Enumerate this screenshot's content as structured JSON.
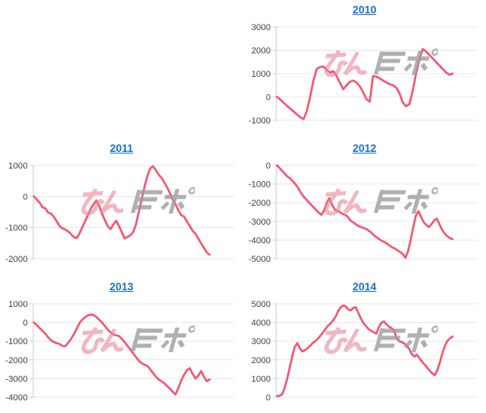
{
  "page": {
    "background": "#ffffff",
    "description": "Grid of five yearly weekly profit/loss line charts"
  },
  "colors": {
    "line": "#f6546e",
    "grid_line": "#e8e8e8",
    "axis_line": "#c9c9c9",
    "tick_text": "#3f3f3f",
    "title_link": "#1b6fc8",
    "watermark_pink": "#ea8c9b",
    "watermark_gray": "#9d9d9d"
  },
  "watermark": {
    "text": "みんレポ",
    "pink_part": "みん",
    "gray_part": "レポ"
  },
  "chart_style": {
    "grid": true,
    "legend": "none",
    "x_axis_labels": "none",
    "marker": "none"
  },
  "chart_data": [
    {
      "type": "line",
      "title": "2010",
      "grid_cell": {
        "row": 0,
        "col": 1
      },
      "ylim": [
        -1000,
        3000
      ],
      "yticks": [
        3000,
        2000,
        1000,
        0,
        -1000
      ],
      "xlabel": "",
      "ylabel": "",
      "values": [
        0,
        -120,
        -250,
        -380,
        -500,
        -620,
        -750,
        -870,
        -950,
        -600,
        0,
        700,
        1200,
        1280,
        1300,
        1150,
        1050,
        1100,
        900,
        600,
        330,
        500,
        650,
        700,
        620,
        450,
        200,
        -100,
        -200,
        900,
        870,
        800,
        700,
        620,
        550,
        500,
        400,
        150,
        -250,
        -400,
        -300,
        300,
        1000,
        1600,
        2050,
        1950,
        1800,
        1650,
        1500,
        1350,
        1200,
        1050,
        950,
        1000
      ]
    },
    {
      "type": "line",
      "title": "2011",
      "grid_cell": {
        "row": 1,
        "col": 0
      },
      "ylim": [
        -2000,
        1000
      ],
      "yticks": [
        1000,
        0,
        -1000,
        -2000
      ],
      "xlabel": "",
      "ylabel": "",
      "values": [
        0,
        -100,
        -200,
        -350,
        -380,
        -520,
        -550,
        -650,
        -800,
        -950,
        -1020,
        -1060,
        -1120,
        -1200,
        -1300,
        -1340,
        -1200,
        -1000,
        -800,
        -600,
        -400,
        -250,
        -130,
        -300,
        -550,
        -750,
        -950,
        -1050,
        -900,
        -780,
        -950,
        -1150,
        -1350,
        -1300,
        -1250,
        -1150,
        -900,
        -500,
        -100,
        300,
        650,
        900,
        970,
        850,
        700,
        600,
        450,
        300,
        100,
        -100,
        -250,
        -450,
        -600,
        -650,
        -800,
        -950,
        -1100,
        -1200,
        -1350,
        -1500,
        -1650,
        -1800,
        -1870
      ]
    },
    {
      "type": "line",
      "title": "2012",
      "grid_cell": {
        "row": 1,
        "col": 1
      },
      "ylim": [
        -5000,
        0
      ],
      "yticks": [
        0,
        -1000,
        -2000,
        -3000,
        -4000,
        -5000
      ],
      "xlabel": "",
      "ylabel": "",
      "values": [
        0,
        -150,
        -300,
        -450,
        -600,
        -700,
        -850,
        -1000,
        -1200,
        -1450,
        -1650,
        -1800,
        -1950,
        -2100,
        -2250,
        -2400,
        -2550,
        -2650,
        -2400,
        -2000,
        -1750,
        -2100,
        -2350,
        -2450,
        -2500,
        -2600,
        -2650,
        -2750,
        -2950,
        -3050,
        -3150,
        -3250,
        -3300,
        -3350,
        -3400,
        -3500,
        -3600,
        -3750,
        -3850,
        -3950,
        -4050,
        -4100,
        -4200,
        -4300,
        -4400,
        -4450,
        -4550,
        -4650,
        -4750,
        -4950,
        -4600,
        -4000,
        -3300,
        -2700,
        -2450,
        -2750,
        -3050,
        -3200,
        -3300,
        -3150,
        -2950,
        -2850,
        -3150,
        -3450,
        -3650,
        -3800,
        -3900,
        -3950
      ]
    },
    {
      "type": "line",
      "title": "2013",
      "grid_cell": {
        "row": 2,
        "col": 0
      },
      "ylim": [
        -4000,
        1000
      ],
      "yticks": [
        1000,
        0,
        -1000,
        -2000,
        -3000,
        -4000
      ],
      "xlabel": "",
      "ylabel": "",
      "values": [
        0,
        -150,
        -300,
        -450,
        -600,
        -800,
        -950,
        -1050,
        -1100,
        -1150,
        -1250,
        -1270,
        -1100,
        -900,
        -650,
        -350,
        -50,
        150,
        280,
        380,
        430,
        400,
        300,
        150,
        0,
        -180,
        -380,
        -520,
        -640,
        -690,
        -720,
        -880,
        -1050,
        -1250,
        -1450,
        -1650,
        -1850,
        -2050,
        -2180,
        -2260,
        -2320,
        -2500,
        -2700,
        -2900,
        -3050,
        -3150,
        -3250,
        -3400,
        -3550,
        -3720,
        -3850,
        -3500,
        -3100,
        -2800,
        -2550,
        -2450,
        -2750,
        -3000,
        -2850,
        -2600,
        -2900,
        -3150,
        -3050
      ]
    },
    {
      "type": "line",
      "title": "2014",
      "grid_cell": {
        "row": 2,
        "col": 1
      },
      "ylim": [
        0,
        5000
      ],
      "yticks": [
        5000,
        4000,
        3000,
        2000,
        1000,
        0
      ],
      "xlabel": "",
      "ylabel": "",
      "values": [
        50,
        80,
        150,
        500,
        1000,
        1600,
        2200,
        2700,
        2900,
        2600,
        2450,
        2520,
        2620,
        2750,
        2900,
        3000,
        3120,
        3280,
        3450,
        3650,
        3820,
        3950,
        4100,
        4300,
        4600,
        4800,
        4920,
        4850,
        4700,
        4650,
        4780,
        4820,
        4500,
        4200,
        3950,
        3800,
        3650,
        3550,
        3480,
        3400,
        3750,
        3980,
        4060,
        3900,
        3780,
        3700,
        3580,
        3150,
        3000,
        2950,
        2880,
        2750,
        2580,
        2300,
        2180,
        2280,
        2080,
        1900,
        1750,
        1580,
        1420,
        1280,
        1180,
        1450,
        1850,
        2350,
        2750,
        3020,
        3150,
        3250
      ]
    }
  ]
}
